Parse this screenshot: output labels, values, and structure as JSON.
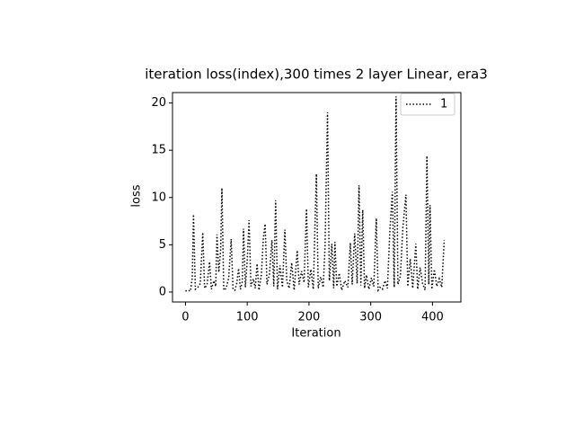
{
  "chart_data": {
    "type": "line",
    "title": "iteration loss(index),300 times 2 layer Linear, era3",
    "x_label": "Iteration",
    "y_label": "loss",
    "x": [
      0,
      4,
      8,
      11,
      13,
      16,
      20,
      24,
      28,
      31,
      35,
      39,
      42,
      46,
      49,
      51,
      54,
      57,
      59,
      62,
      66,
      70,
      74,
      77,
      80,
      83,
      86,
      89,
      92,
      94,
      97,
      100,
      103,
      106,
      110,
      113,
      116,
      119,
      123,
      126,
      129,
      132,
      136,
      140,
      143,
      146,
      149,
      153,
      157,
      161,
      164,
      168,
      172,
      176,
      181,
      184,
      188,
      192,
      196,
      199,
      203,
      207,
      212,
      215,
      219,
      223,
      226,
      230,
      233,
      237,
      240,
      242,
      245,
      249,
      253,
      258,
      263,
      267,
      270,
      274,
      278,
      281,
      284,
      287,
      290,
      293,
      297,
      301,
      305,
      309,
      312,
      315,
      319,
      323,
      327,
      331,
      335,
      338,
      341,
      344,
      348,
      352,
      357,
      360,
      364,
      368,
      373,
      376,
      380,
      384,
      388,
      391,
      394,
      396,
      399,
      403,
      407,
      411,
      415,
      419
    ],
    "series": [
      {
        "name": "1",
        "color": "#000000",
        "values": [
          0.1,
          0.2,
          0.1,
          1.5,
          8.2,
          0.3,
          0.5,
          0.9,
          6.3,
          0.4,
          0.8,
          3.2,
          0.3,
          1.2,
          0.6,
          6.1,
          2.1,
          4.5,
          11,
          0.2,
          0.4,
          1.5,
          5.6,
          0.3,
          0.2,
          0.9,
          2.5,
          0.3,
          1.1,
          6.7,
          0.5,
          3.4,
          7.6,
          0.6,
          1.4,
          0.4,
          3,
          0.2,
          1.9,
          5.6,
          7.2,
          0.8,
          1.9,
          5.5,
          0.6,
          9.7,
          0.3,
          2.8,
          0.5,
          6.6,
          1.2,
          0.4,
          3.1,
          0.2,
          4.4,
          0.8,
          2.2,
          1,
          8.8,
          0.5,
          2.4,
          0.3,
          12.5,
          0.4,
          1.6,
          0.5,
          4.8,
          19,
          1.2,
          5.1,
          0.4,
          5.3,
          0.6,
          2,
          0.2,
          1.2,
          0.5,
          5.2,
          0.8,
          6.2,
          0.9,
          11.3,
          0.7,
          8.7,
          0.4,
          1.8,
          0.3,
          1.5,
          0.6,
          7.8,
          0.2,
          0.5,
          0.3,
          1.2,
          0.4,
          6.5,
          10.6,
          0.5,
          20.7,
          0.8,
          1.7,
          6.8,
          10.3,
          0.6,
          3.5,
          0.4,
          5.1,
          0.3,
          2.6,
          0.9,
          0.2,
          14.4,
          0.8,
          9.2,
          0.3,
          2.4,
          0.6,
          1.4,
          0.5,
          5.5
        ]
      }
    ],
    "xlim": [
      -21,
      446
    ],
    "ylim": [
      -1.05,
      21.1
    ],
    "xticks": [
      0,
      100,
      200,
      300,
      400
    ],
    "yticks": [
      0,
      5,
      10,
      15,
      20
    ],
    "line_style": "dotted",
    "legend": "upper right",
    "grid": false
  }
}
